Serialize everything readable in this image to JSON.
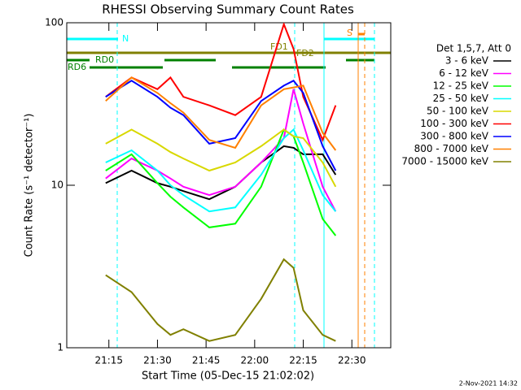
{
  "chart_data": {
    "type": "line",
    "title": "RHESSI Observing Summary Count Rates",
    "x_label": "Start Time (05-Dec-15 21:02:02)",
    "y_label": "Count Rate (s⁻¹ detector⁻¹)",
    "legend_title": "Det 1,5,7, Att 0",
    "footer": "2-Nov-2021 14:32",
    "annotations": [
      "N",
      "RD0",
      "RD6",
      "FD1",
      "FD2",
      "S"
    ],
    "log_y": true,
    "xlim": [
      "21:02",
      "22:42"
    ],
    "xticks": [
      "21:15",
      "21:30",
      "21:45",
      "22:00",
      "22:15",
      "22:30"
    ],
    "ylim": [
      1,
      100
    ],
    "yticks": [
      1,
      10,
      100
    ],
    "x": [
      "21:14",
      "21:22",
      "21:30",
      "21:34",
      "21:38",
      "21:46",
      "21:54",
      "22:02",
      "22:09",
      "22:12",
      "22:15",
      "22:21",
      "22:25"
    ],
    "series": [
      {
        "name": "3 - 6 keV",
        "color": "#000000",
        "values": [
          10.3,
          12.3,
          10.3,
          9.8,
          9.2,
          8.2,
          9.8,
          13.8,
          17.4,
          17,
          15.5,
          15.5,
          11.6
        ]
      },
      {
        "name": "6 - 12 keV",
        "color": "#ff00ff",
        "values": [
          11,
          14.6,
          12.3,
          11,
          9.8,
          8.7,
          9.8,
          13.8,
          19.5,
          39,
          24,
          9.8,
          6.9
        ]
      },
      {
        "name": "12 - 25 keV",
        "color": "#00ff00",
        "values": [
          12.3,
          15.5,
          10.3,
          8.5,
          7.3,
          5.5,
          5.8,
          9.8,
          22,
          20,
          13.8,
          6.2,
          4.9
        ]
      },
      {
        "name": "25 - 50 keV",
        "color": "#00ffff",
        "values": [
          13.8,
          16.4,
          12.3,
          10,
          8.7,
          6.9,
          7.3,
          11.6,
          19.5,
          22,
          16.4,
          8.7,
          6.9
        ]
      },
      {
        "name": "50 - 100 keV",
        "color": "#d8d800",
        "values": [
          18,
          22,
          18,
          16,
          14.6,
          12.3,
          13.8,
          17.4,
          22,
          20,
          19.5,
          13.8,
          9.8
        ]
      },
      {
        "name": "100 - 300 keV",
        "color": "#ff0000",
        "values": [
          35,
          46,
          39,
          46,
          35,
          31,
          27,
          35,
          98,
          69,
          35,
          19,
          31
        ]
      },
      {
        "name": "300 - 800 keV",
        "color": "#0000ff",
        "values": [
          35,
          44,
          35,
          30,
          27,
          18,
          19.5,
          33,
          41,
          44,
          37,
          17.4,
          12.3
        ]
      },
      {
        "name": "800 - 7000 keV",
        "color": "#ff8000",
        "values": [
          33,
          46,
          37,
          32,
          28,
          19,
          17,
          31,
          39,
          40,
          41,
          21,
          16.4
        ]
      },
      {
        "name": "7000 - 15000 keV",
        "color": "#808000",
        "values": [
          2.8,
          2.2,
          1.4,
          1.2,
          1.3,
          1.1,
          1.2,
          2.0,
          3.5,
          3.1,
          1.7,
          1.2,
          1.1
        ]
      }
    ]
  }
}
